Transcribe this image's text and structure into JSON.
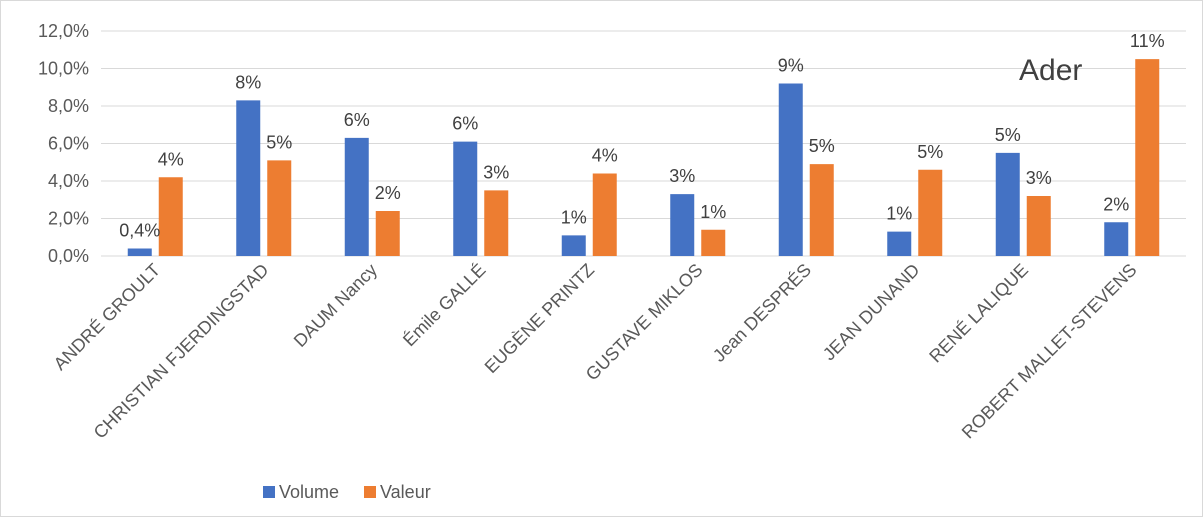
{
  "chart_data": {
    "type": "bar",
    "title": "",
    "annotation": "Ader",
    "xlabel": "",
    "ylabel": "",
    "ylim": [
      0,
      12
    ],
    "yticks": [
      0,
      2,
      4,
      6,
      8,
      10,
      12
    ],
    "ytick_labels": [
      "0,0%",
      "2,0%",
      "4,0%",
      "6,0%",
      "8,0%",
      "10,0%",
      "12,0%"
    ],
    "categories": [
      "ANDRÉ GROULT",
      "CHRISTIAN FJERDINGSTAD",
      "DAUM Nancy",
      "Émile GALLÉ",
      "EUGÈNE PRINTZ",
      "GUSTAVE MIKLOS",
      "Jean DESPRÉS",
      "JEAN DUNAND",
      "RENÉ LALIQUE",
      "ROBERT MALLET-STEVENS"
    ],
    "series": [
      {
        "name": "Volume",
        "color": "#4472C4",
        "values": [
          0.4,
          8.3,
          6.3,
          6.1,
          1.1,
          3.3,
          9.2,
          1.3,
          5.5,
          1.8
        ],
        "labels": [
          "0,4%",
          "8%",
          "6%",
          "6%",
          "1%",
          "3%",
          "9%",
          "1%",
          "5%",
          "2%"
        ]
      },
      {
        "name": "Valeur",
        "color": "#ED7D31",
        "values": [
          4.2,
          5.1,
          2.4,
          3.5,
          4.4,
          1.4,
          4.9,
          4.6,
          3.2,
          10.5
        ],
        "labels": [
          "4%",
          "5%",
          "2%",
          "3%",
          "4%",
          "1%",
          "5%",
          "5%",
          "3%",
          "11%"
        ]
      }
    ],
    "grid": true,
    "legend_position": "bottom"
  }
}
